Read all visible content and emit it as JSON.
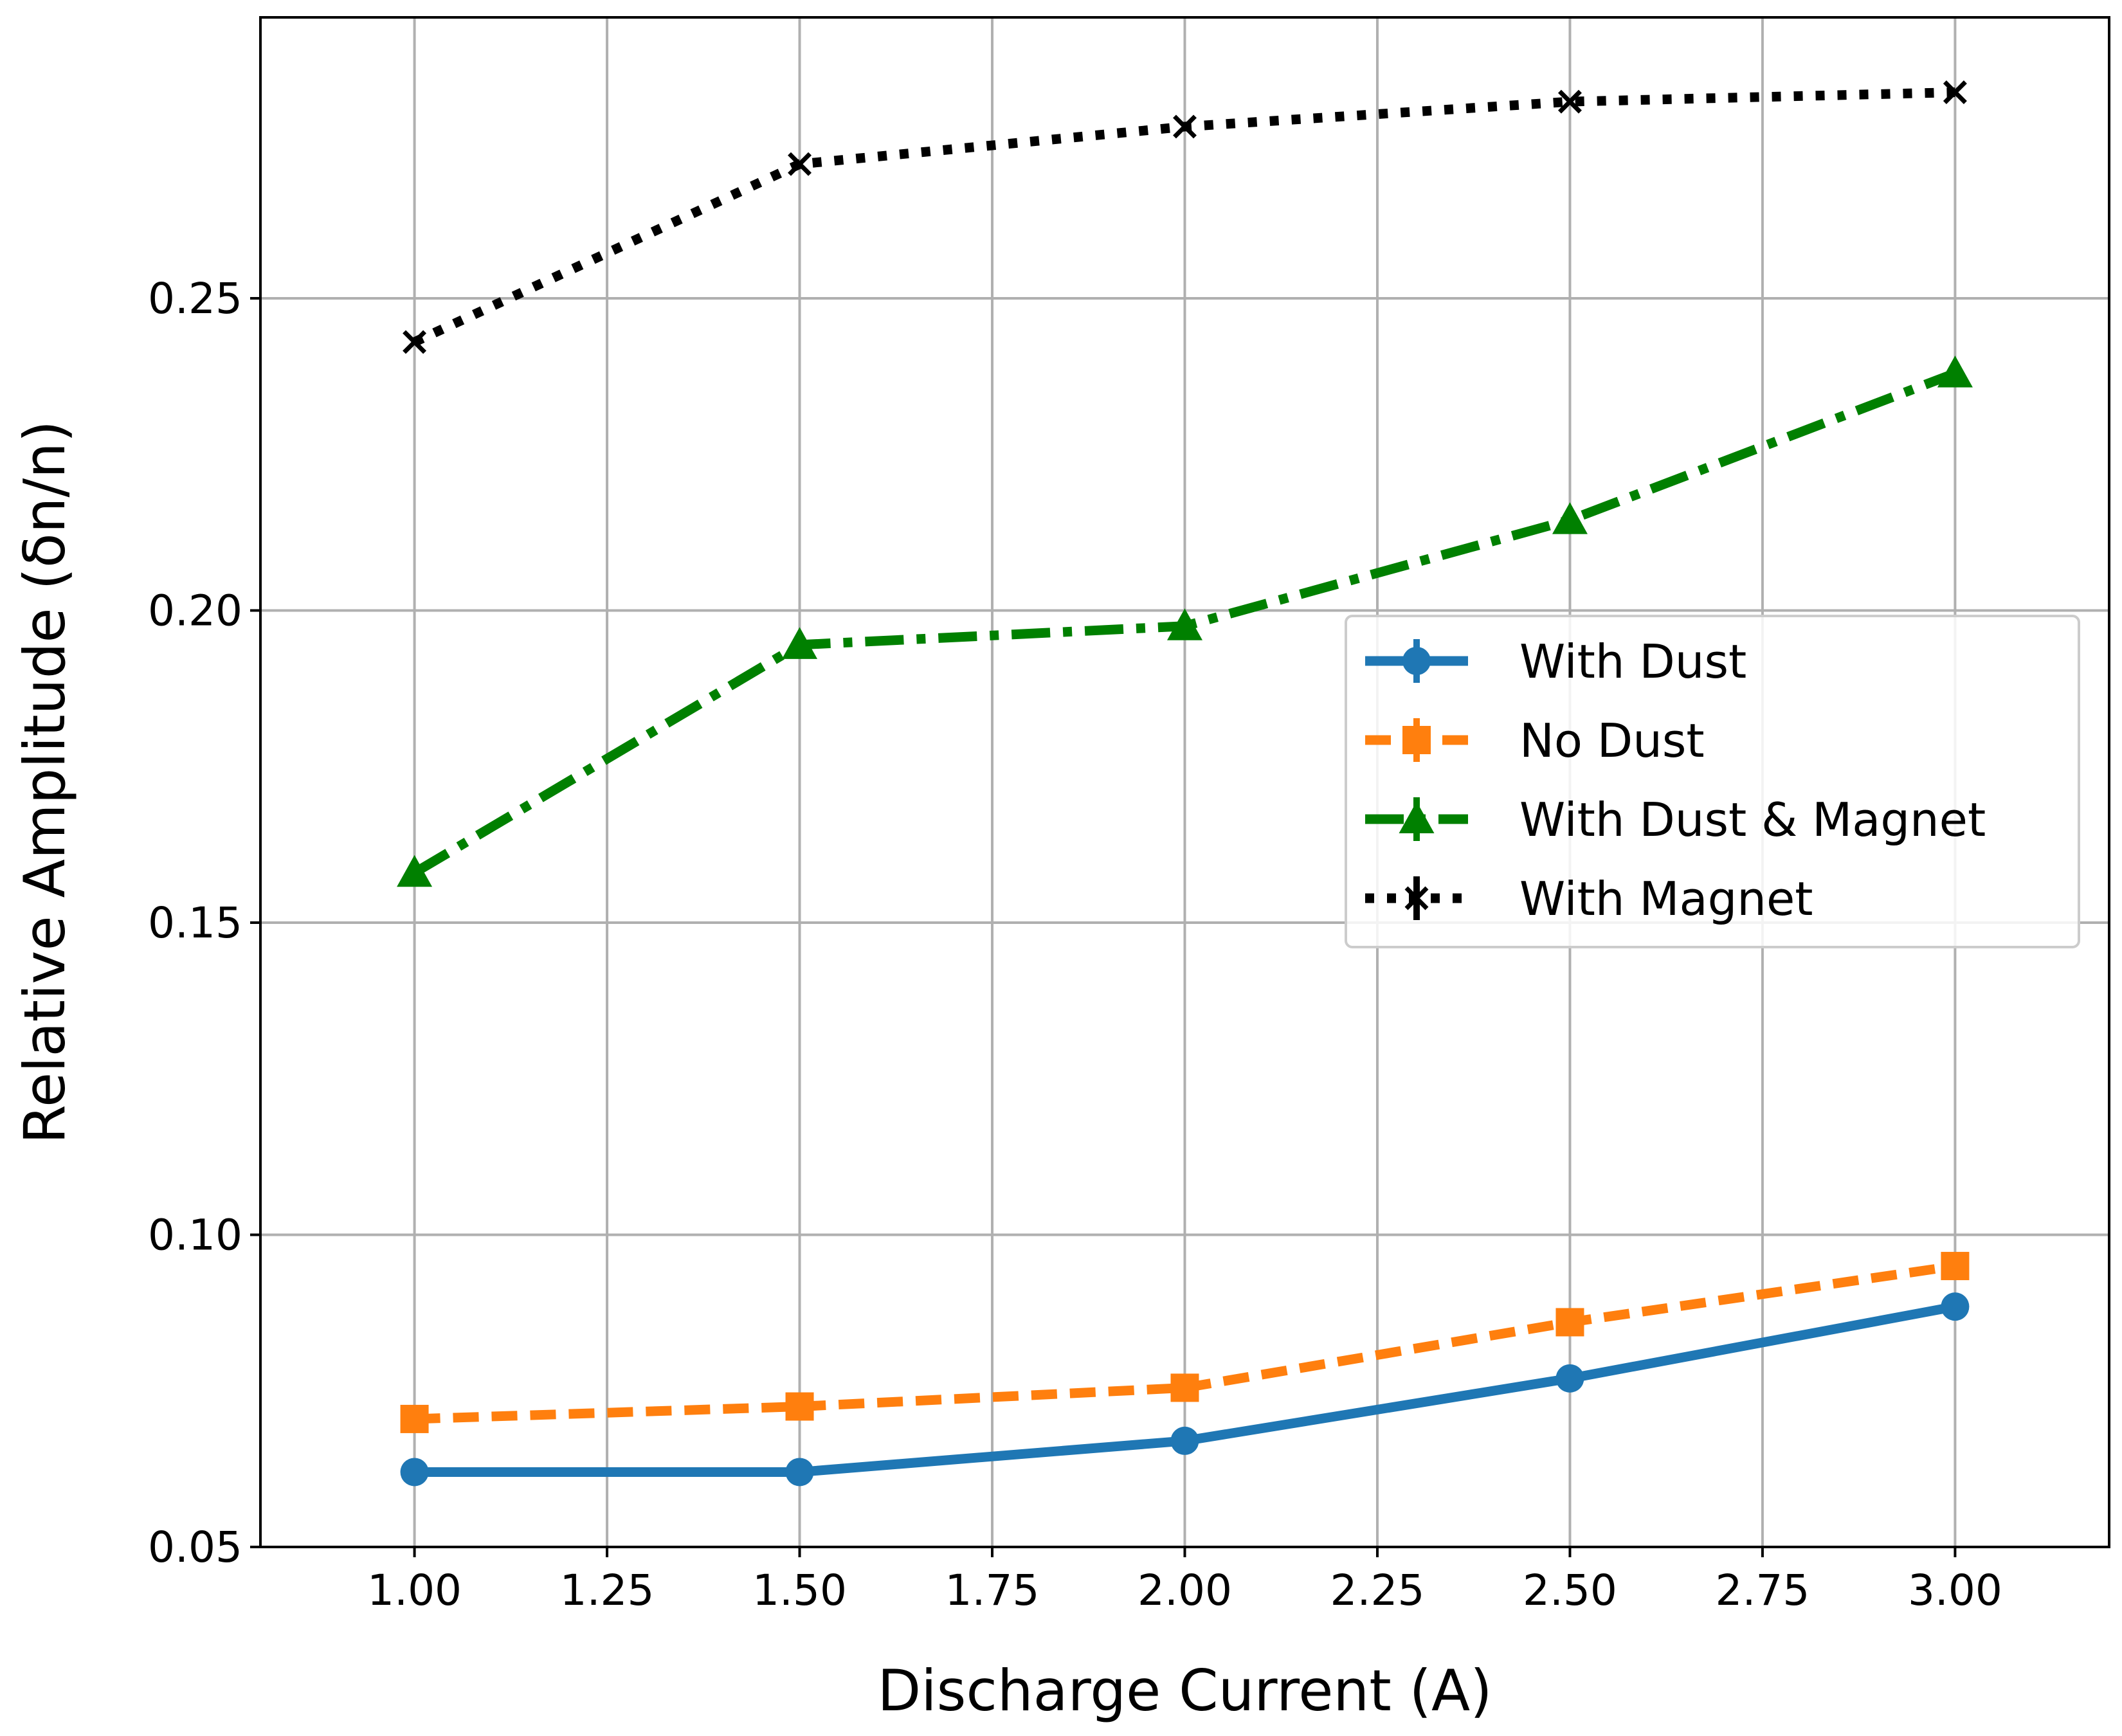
{
  "chart_data": {
    "type": "line",
    "title": "",
    "xlabel": "Discharge Current (A)",
    "ylabel": "Relative Amplitude (δn/n)",
    "xlim": [
      0.8,
      3.2
    ],
    "ylim": [
      0.05,
      0.295
    ],
    "grid": true,
    "legend_position": "center-right",
    "x_ticks": [
      1.0,
      1.25,
      1.5,
      1.75,
      2.0,
      2.25,
      2.5,
      2.75,
      3.0
    ],
    "x_tick_labels": [
      "1.00",
      "1.25",
      "1.50",
      "1.75",
      "2.00",
      "2.25",
      "2.50",
      "2.75",
      "3.00"
    ],
    "y_ticks": [
      0.05,
      0.1,
      0.15,
      0.2,
      0.25
    ],
    "y_tick_labels": [
      "0.05",
      "0.10",
      "0.15",
      "0.20",
      "0.25"
    ],
    "x": [
      1.0,
      1.5,
      2.0,
      2.5,
      3.0
    ],
    "series": [
      {
        "name": "With Dust",
        "values": [
          0.062,
          0.062,
          0.067,
          0.077,
          0.0885
        ],
        "color": "#1f77b4",
        "marker": "circle",
        "linestyle": "solid"
      },
      {
        "name": "No Dust",
        "values": [
          0.0705,
          0.0725,
          0.0755,
          0.086,
          0.095
        ],
        "color": "#ff7f0e",
        "marker": "square",
        "linestyle": "dashed"
      },
      {
        "name": "With Dust & Magnet",
        "values": [
          0.158,
          0.1945,
          0.1975,
          0.2145,
          0.238
        ],
        "color": "#008000",
        "marker": "triangle",
        "linestyle": "dashdot"
      },
      {
        "name": "With Magnet",
        "values": [
          0.243,
          0.2715,
          0.2775,
          0.2815,
          0.283
        ],
        "color": "#000000",
        "marker": "x",
        "linestyle": "dotted"
      }
    ]
  }
}
